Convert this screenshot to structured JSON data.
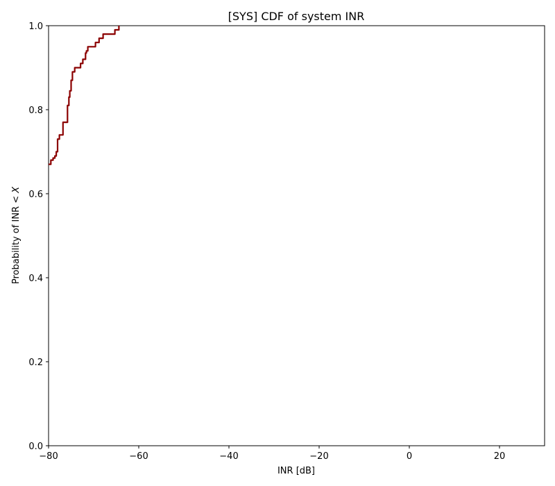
{
  "chart_data": {
    "type": "line",
    "title": "[SYS] CDF of system INR",
    "xlabel": "INR [dB]",
    "ylabel_prefix": "Probability of INR < ",
    "ylabel_var": "X",
    "xlim": [
      -80,
      30
    ],
    "ylim": [
      0.0,
      1.0
    ],
    "xticks": [
      -80,
      -60,
      -40,
      -20,
      0,
      20
    ],
    "xtick_labels": [
      "−80",
      "−60",
      "−40",
      "−20",
      "0",
      "20"
    ],
    "yticks": [
      0.0,
      0.2,
      0.4,
      0.6,
      0.8,
      1.0
    ],
    "ytick_labels": [
      "0.0",
      "0.2",
      "0.4",
      "0.6",
      "0.8",
      "1.0"
    ],
    "grid": false,
    "series": [
      {
        "color": "#8b0000",
        "x": [
          -80.0,
          -79.5,
          -79.0,
          -78.6,
          -78.3,
          -78.0,
          -77.6,
          -77.3,
          -76.8,
          -76.6,
          -76.2,
          -75.8,
          -75.5,
          -75.3,
          -75.0,
          -74.7,
          -74.2,
          -73.6,
          -73.3,
          -72.9,
          -72.4,
          -72.1,
          -71.8,
          -71.6,
          -71.3,
          -70.6,
          -70.1,
          -69.6,
          -69.2,
          -68.8,
          -68.3,
          -67.9,
          -67.2,
          -66.4,
          -65.7,
          -65.3,
          -64.6,
          -64.4
        ],
        "y": [
          0.67,
          0.68,
          0.685,
          0.69,
          0.7,
          0.73,
          0.74,
          0.74,
          0.77,
          0.77,
          0.77,
          0.81,
          0.83,
          0.845,
          0.87,
          0.89,
          0.9,
          0.9,
          0.9,
          0.91,
          0.92,
          0.92,
          0.935,
          0.94,
          0.95,
          0.95,
          0.95,
          0.96,
          0.96,
          0.97,
          0.97,
          0.98,
          0.98,
          0.98,
          0.98,
          0.99,
          0.99,
          1.0
        ]
      }
    ]
  }
}
